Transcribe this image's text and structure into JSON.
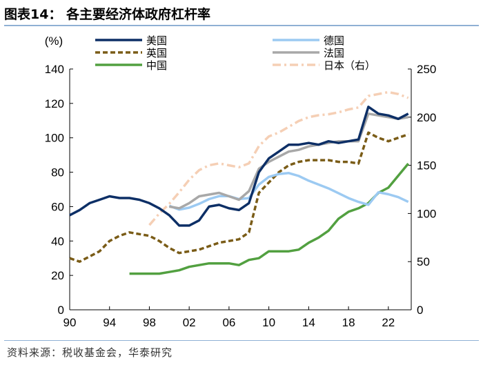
{
  "header": {
    "title": "图表14：  各主要经济体政府杠杆率"
  },
  "footer": {
    "source": "资料来源：税收基金会，华泰研究"
  },
  "chart_data": {
    "type": "line",
    "title": "图表14：  各主要经济体政府杠杆率",
    "ylabel_left": "(%)",
    "ylim_left": [
      0,
      140
    ],
    "ylim_right": [
      0,
      250
    ],
    "xlim": [
      1990,
      2024.3
    ],
    "x_ticks": [
      1990,
      1994,
      1998,
      2002,
      2006,
      2010,
      2014,
      2018,
      2022
    ],
    "x_tick_labels": [
      "90",
      "94",
      "98",
      "02",
      "06",
      "10",
      "14",
      "18",
      "22"
    ],
    "y_ticks_left": [
      0,
      20,
      40,
      60,
      80,
      100,
      120,
      140
    ],
    "y_ticks_right": [
      0,
      50,
      100,
      150,
      200,
      250
    ],
    "series": [
      {
        "name": "美国",
        "color": "#0d2f66",
        "style": "solid",
        "axis": "left",
        "x": [
          1990,
          1991,
          1992,
          1993,
          1994,
          1995,
          1996,
          1997,
          1998,
          1999,
          2000,
          2001,
          2002,
          2003,
          2004,
          2005,
          2006,
          2007,
          2008,
          2009,
          2010,
          2011,
          2012,
          2013,
          2014,
          2015,
          2016,
          2017,
          2018,
          2019,
          2020,
          2021,
          2022,
          2023,
          2024
        ],
        "values": [
          55,
          58,
          62,
          64,
          66,
          65,
          65,
          64,
          62,
          59,
          55,
          49,
          49,
          52,
          60,
          61,
          59,
          58,
          62,
          80,
          88,
          92,
          96,
          96,
          97,
          96,
          98,
          97,
          98,
          99,
          118,
          114,
          113,
          111,
          114
        ]
      },
      {
        "name": "德国",
        "color": "#9ccaf2",
        "style": "solid",
        "axis": "right",
        "x": [
          2000,
          2001,
          2002,
          2003,
          2004,
          2005,
          2006,
          2007,
          2008,
          2009,
          2010,
          2011,
          2012,
          2013,
          2014,
          2015,
          2016,
          2017,
          2018,
          2019,
          2020,
          2021,
          2022,
          2023,
          2024
        ],
        "values": [
          108,
          104,
          106,
          110,
          115,
          118,
          118,
          115,
          116,
          130,
          138,
          141,
          142,
          139,
          134,
          130,
          126,
          121,
          116,
          112,
          109,
          122,
          120,
          117,
          112
        ]
      },
      {
        "name": "英国",
        "color": "#7a5c17",
        "style": "dashed",
        "axis": "left",
        "x": [
          1990,
          1991,
          1992,
          1993,
          1994,
          1995,
          1996,
          1997,
          1998,
          1999,
          2000,
          2001,
          2002,
          2003,
          2004,
          2005,
          2006,
          2007,
          2008,
          2009,
          2010,
          2011,
          2012,
          2013,
          2014,
          2015,
          2016,
          2017,
          2018,
          2019,
          2020,
          2021,
          2022,
          2023,
          2024
        ],
        "values": [
          30,
          28,
          31,
          34,
          40,
          43,
          45,
          44,
          43,
          40,
          36,
          33,
          34,
          35,
          37,
          39,
          40,
          41,
          45,
          68,
          74,
          80,
          84,
          86,
          87,
          87,
          87,
          86,
          86,
          85,
          103,
          100,
          98,
          100,
          102
        ]
      },
      {
        "name": "法国",
        "color": "#a8a8a8",
        "style": "solid",
        "axis": "left",
        "x": [
          2000,
          2001,
          2002,
          2003,
          2004,
          2005,
          2006,
          2007,
          2008,
          2009,
          2010,
          2011,
          2012,
          2013,
          2014,
          2015,
          2016,
          2017,
          2018,
          2019,
          2020,
          2021,
          2022,
          2023,
          2024
        ],
        "values": [
          60,
          59,
          62,
          66,
          67,
          68,
          66,
          64,
          69,
          82,
          86,
          89,
          92,
          93,
          95,
          96,
          97,
          98,
          98,
          98,
          114,
          113,
          112,
          111,
          112
        ]
      },
      {
        "name": "中国",
        "color": "#52a040",
        "style": "solid",
        "axis": "left",
        "x": [
          1996,
          1997,
          1998,
          1999,
          2000,
          2001,
          2002,
          2003,
          2004,
          2005,
          2006,
          2007,
          2008,
          2009,
          2010,
          2011,
          2012,
          2013,
          2014,
          2015,
          2016,
          2017,
          2018,
          2019,
          2020,
          2021,
          2022,
          2023,
          2024
        ],
        "values": [
          21,
          21,
          21,
          21,
          22,
          23,
          25,
          26,
          27,
          27,
          27,
          26,
          29,
          30,
          34,
          34,
          34,
          35,
          39,
          42,
          46,
          53,
          57,
          59,
          62,
          68,
          71,
          78,
          85
        ]
      },
      {
        "name": "日本（右）",
        "color": "#f5cfb5",
        "style": "dashdot",
        "axis": "right",
        "x": [
          1998,
          1999,
          2000,
          2001,
          2002,
          2003,
          2004,
          2005,
          2006,
          2007,
          2008,
          2009,
          2010,
          2011,
          2012,
          2013,
          2014,
          2015,
          2016,
          2017,
          2018,
          2019,
          2020,
          2021,
          2022,
          2023,
          2024
        ],
        "values": [
          88,
          100,
          110,
          122,
          135,
          145,
          150,
          152,
          150,
          148,
          152,
          170,
          180,
          184,
          190,
          196,
          200,
          202,
          203,
          205,
          208,
          210,
          222,
          224,
          226,
          224,
          220
        ]
      }
    ]
  }
}
